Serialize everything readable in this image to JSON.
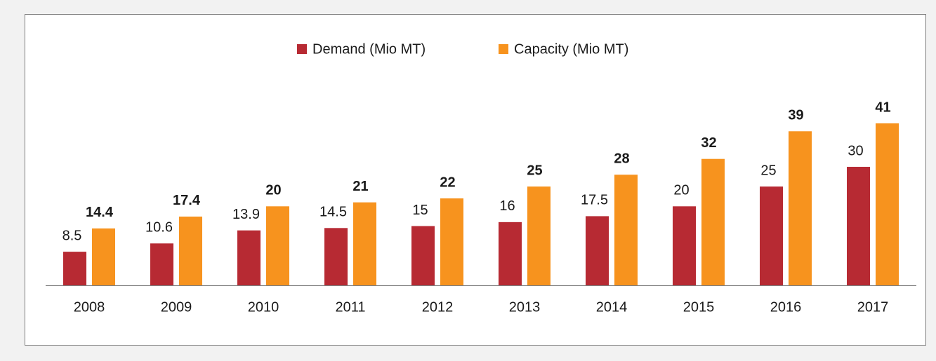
{
  "chart_data": {
    "type": "bar",
    "categories": [
      "2008",
      "2009",
      "2010",
      "2011",
      "2012",
      "2013",
      "2014",
      "2015",
      "2016",
      "2017"
    ],
    "series": [
      {
        "name": "Demand (Mio MT)",
        "color": "#b72a33",
        "values": [
          8.5,
          10.6,
          13.9,
          14.5,
          15,
          16,
          17.5,
          20,
          25,
          30
        ]
      },
      {
        "name": "Capacity (Mio MT)",
        "color": "#f7931e",
        "values": [
          14.4,
          17.4,
          20,
          21,
          22,
          25,
          28,
          32,
          39,
          41
        ]
      }
    ]
  }
}
